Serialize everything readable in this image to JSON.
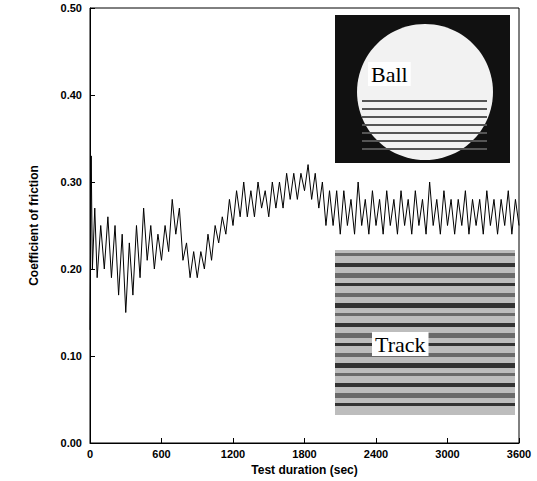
{
  "chart_data": {
    "type": "line",
    "x_label": "Test duration (sec)",
    "y_label": "Coefficient of friction",
    "color": "#000000",
    "grid": false,
    "xlim": [
      0,
      3600
    ],
    "xticks": [
      0,
      600,
      1200,
      1800,
      2400,
      3000,
      3600
    ],
    "ylim": [
      0,
      0.5
    ],
    "yticks": [
      {
        "value": 0,
        "label": "0.00"
      },
      {
        "value": 0.1,
        "label": "0.10"
      },
      {
        "value": 0.2,
        "label": "0.20"
      },
      {
        "value": 0.3,
        "label": "0.30"
      },
      {
        "value": 0.4,
        "label": "0.40"
      },
      {
        "value": 0.5,
        "label": "0.50"
      }
    ],
    "annotations": [
      {
        "text": "Ball"
      },
      {
        "text": "Track"
      }
    ],
    "x": [
      0,
      10,
      20,
      40,
      60,
      90,
      120,
      150,
      180,
      210,
      240,
      270,
      300,
      330,
      360,
      390,
      420,
      450,
      480,
      510,
      540,
      570,
      600,
      630,
      660,
      690,
      720,
      750,
      780,
      810,
      840,
      870,
      900,
      930,
      960,
      990,
      1020,
      1050,
      1080,
      1110,
      1140,
      1170,
      1200,
      1230,
      1260,
      1290,
      1320,
      1350,
      1380,
      1410,
      1440,
      1470,
      1500,
      1530,
      1560,
      1590,
      1620,
      1650,
      1680,
      1710,
      1740,
      1770,
      1800,
      1830,
      1860,
      1890,
      1920,
      1950,
      1980,
      2010,
      2040,
      2070,
      2100,
      2130,
      2160,
      2190,
      2220,
      2250,
      2280,
      2310,
      2340,
      2370,
      2400,
      2430,
      2460,
      2490,
      2520,
      2550,
      2580,
      2610,
      2640,
      2670,
      2700,
      2730,
      2760,
      2790,
      2820,
      2850,
      2880,
      2910,
      2940,
      2970,
      3000,
      3030,
      3060,
      3090,
      3120,
      3150,
      3180,
      3210,
      3240,
      3270,
      3300,
      3330,
      3360,
      3390,
      3420,
      3450,
      3480,
      3510,
      3540,
      3570,
      3600
    ],
    "values": [
      0.13,
      0.33,
      0.2,
      0.27,
      0.19,
      0.25,
      0.2,
      0.26,
      0.19,
      0.25,
      0.17,
      0.24,
      0.15,
      0.23,
      0.17,
      0.25,
      0.19,
      0.27,
      0.21,
      0.25,
      0.2,
      0.24,
      0.21,
      0.25,
      0.22,
      0.28,
      0.24,
      0.27,
      0.21,
      0.23,
      0.19,
      0.22,
      0.19,
      0.22,
      0.2,
      0.24,
      0.21,
      0.25,
      0.23,
      0.26,
      0.24,
      0.28,
      0.25,
      0.29,
      0.26,
      0.3,
      0.26,
      0.29,
      0.26,
      0.3,
      0.27,
      0.29,
      0.26,
      0.3,
      0.27,
      0.3,
      0.27,
      0.31,
      0.28,
      0.31,
      0.28,
      0.31,
      0.29,
      0.32,
      0.28,
      0.31,
      0.27,
      0.3,
      0.25,
      0.29,
      0.25,
      0.29,
      0.24,
      0.29,
      0.25,
      0.28,
      0.24,
      0.3,
      0.25,
      0.28,
      0.24,
      0.29,
      0.25,
      0.28,
      0.24,
      0.29,
      0.25,
      0.28,
      0.24,
      0.29,
      0.25,
      0.28,
      0.24,
      0.29,
      0.25,
      0.28,
      0.24,
      0.3,
      0.25,
      0.28,
      0.24,
      0.29,
      0.25,
      0.28,
      0.24,
      0.28,
      0.25,
      0.29,
      0.24,
      0.28,
      0.25,
      0.28,
      0.24,
      0.29,
      0.25,
      0.28,
      0.24,
      0.28,
      0.25,
      0.29,
      0.24,
      0.28,
      0.25
    ]
  }
}
